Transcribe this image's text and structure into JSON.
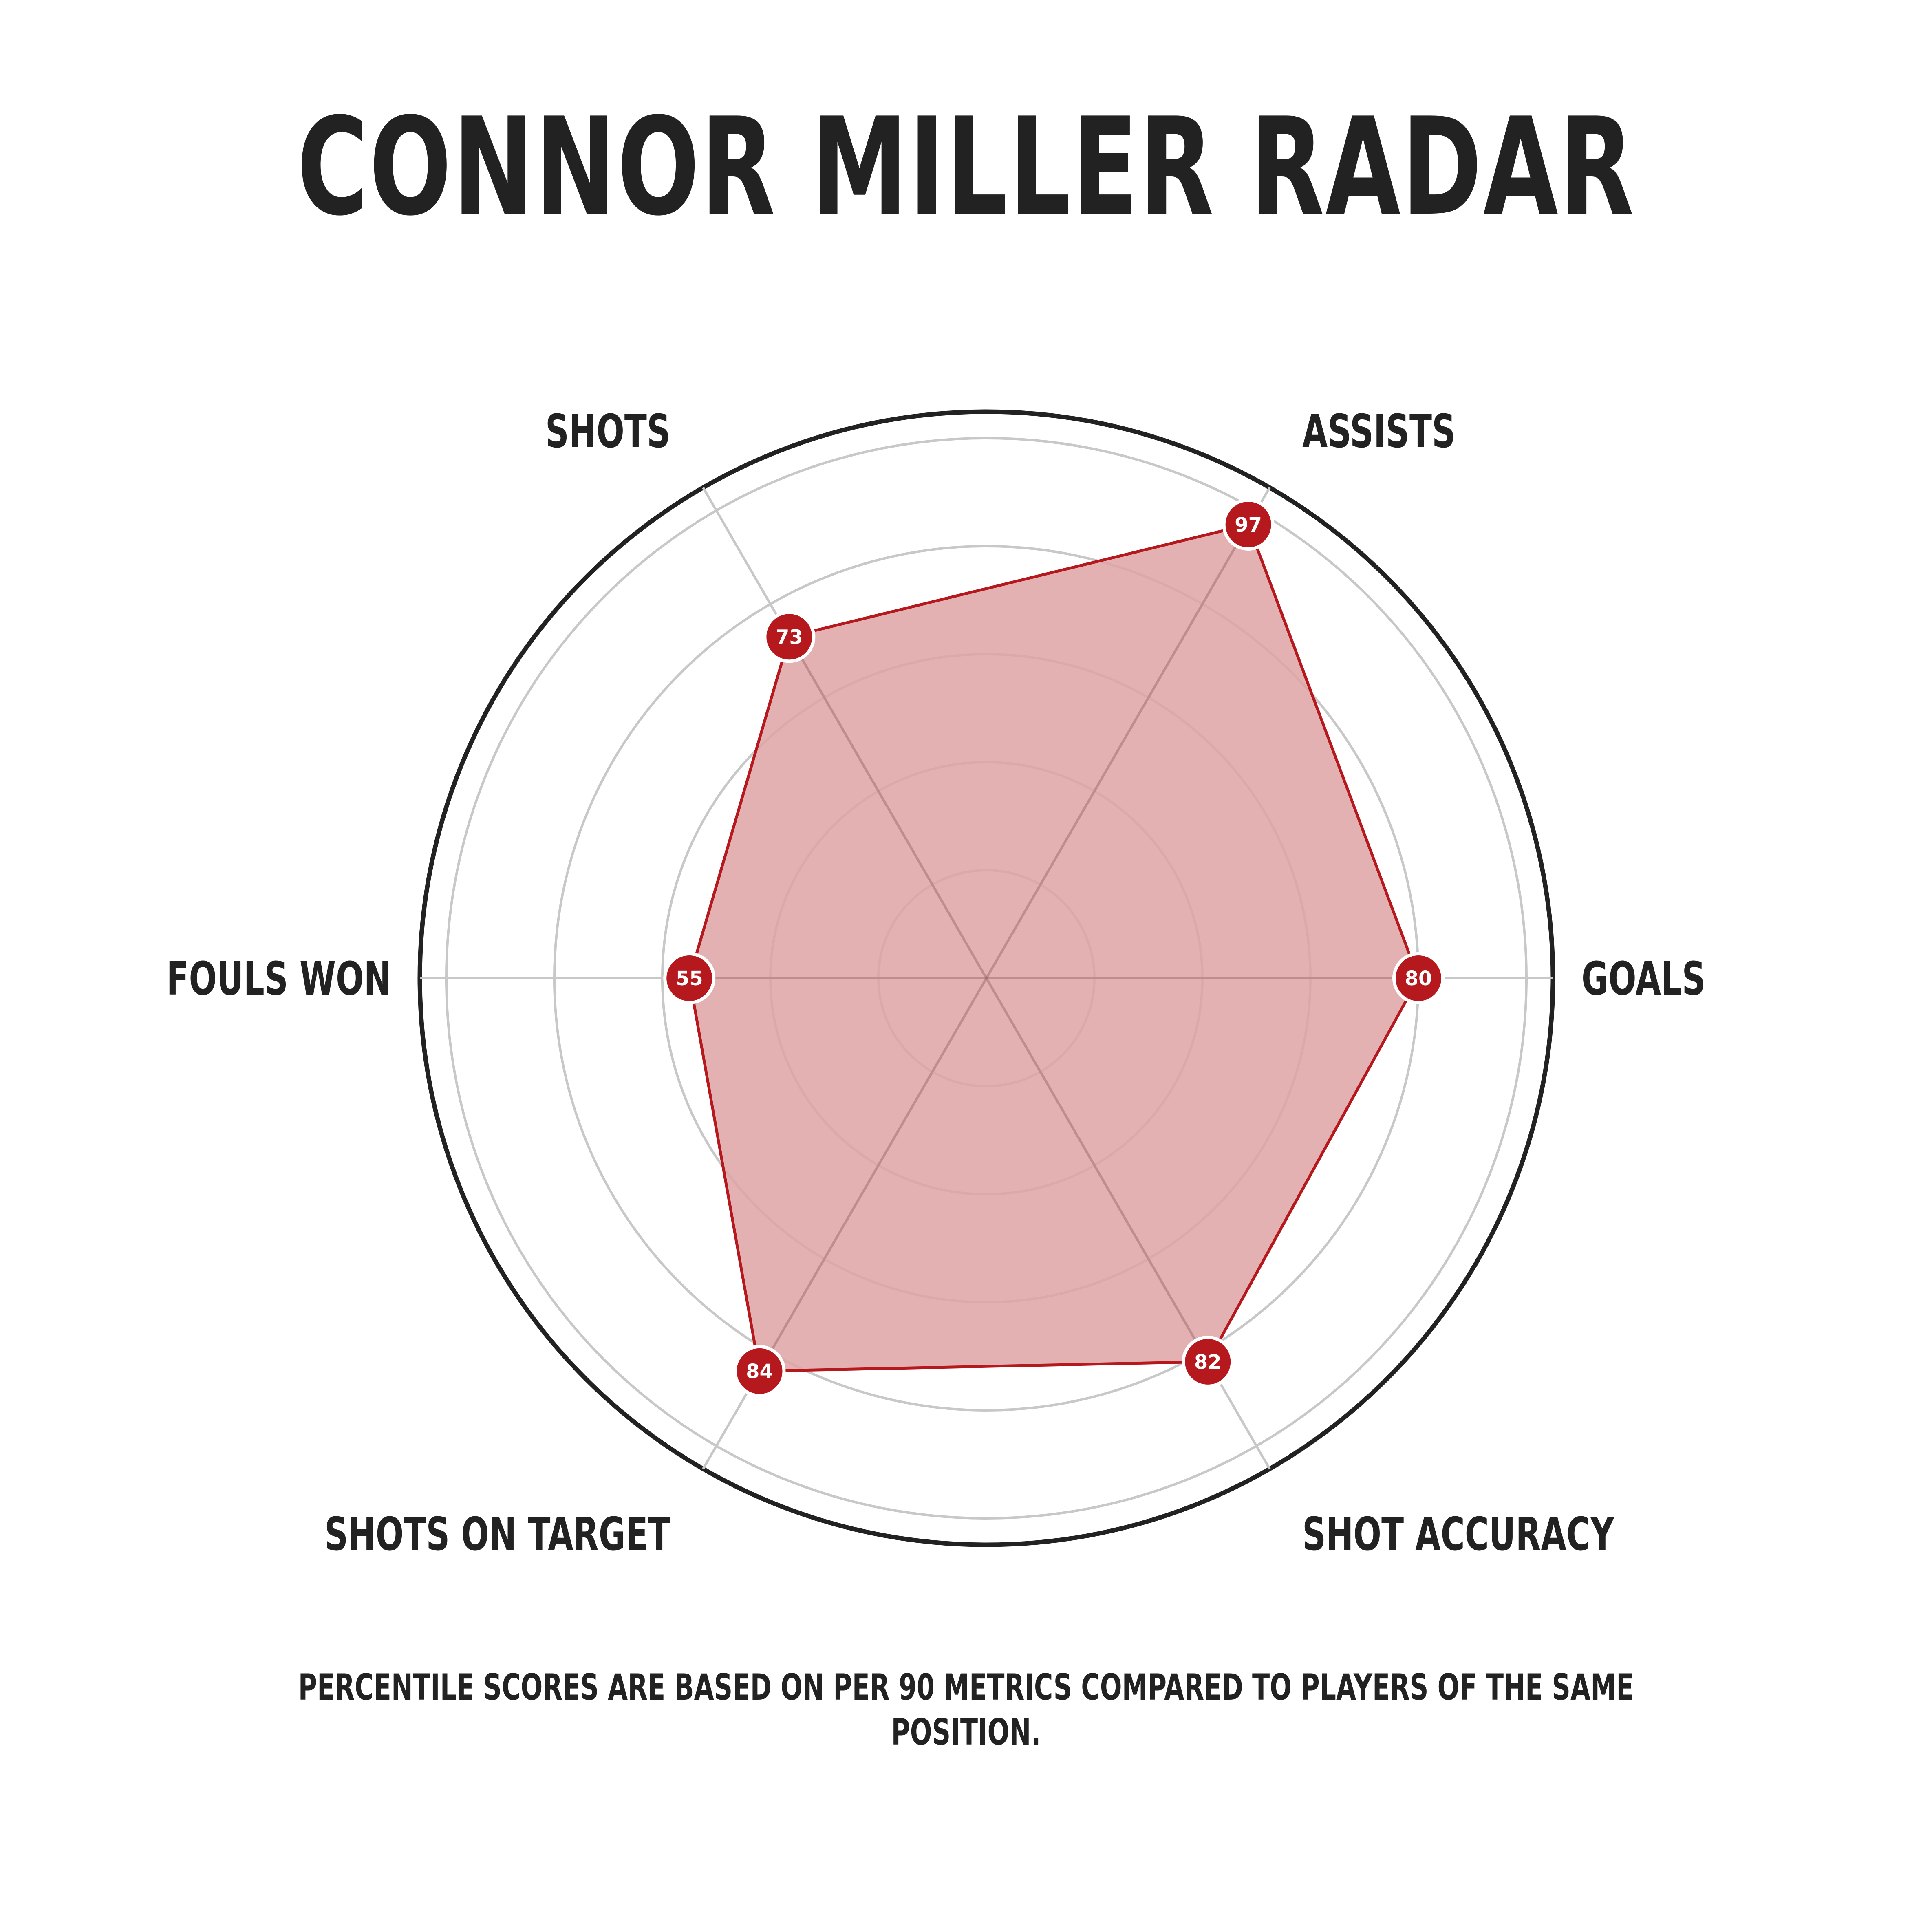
{
  "title": "CONNOR MILLER RADAR",
  "footnote": "PERCENTILE SCORES ARE BASED ON PER 90 METRICS COMPARED TO PLAYERS OF THE SAME POSITION.",
  "colors": {
    "accent": "#b5191e",
    "fill": "#dfa3a5",
    "grid": "#c8c8c8",
    "outer_ring": "#222222",
    "text": "#222222"
  },
  "chart_data": {
    "type": "radar",
    "title": "CONNOR MILLER RADAR",
    "rlim": [
      0,
      100
    ],
    "grid": true,
    "categories": [
      "GOALS",
      "ASSISTS",
      "SHOTS",
      "FOULS WON",
      "SHOTS ON TARGET",
      "SHOT ACCURACY"
    ],
    "series": [
      {
        "values": [
          80,
          97,
          73,
          55,
          84,
          82
        ]
      }
    ]
  }
}
